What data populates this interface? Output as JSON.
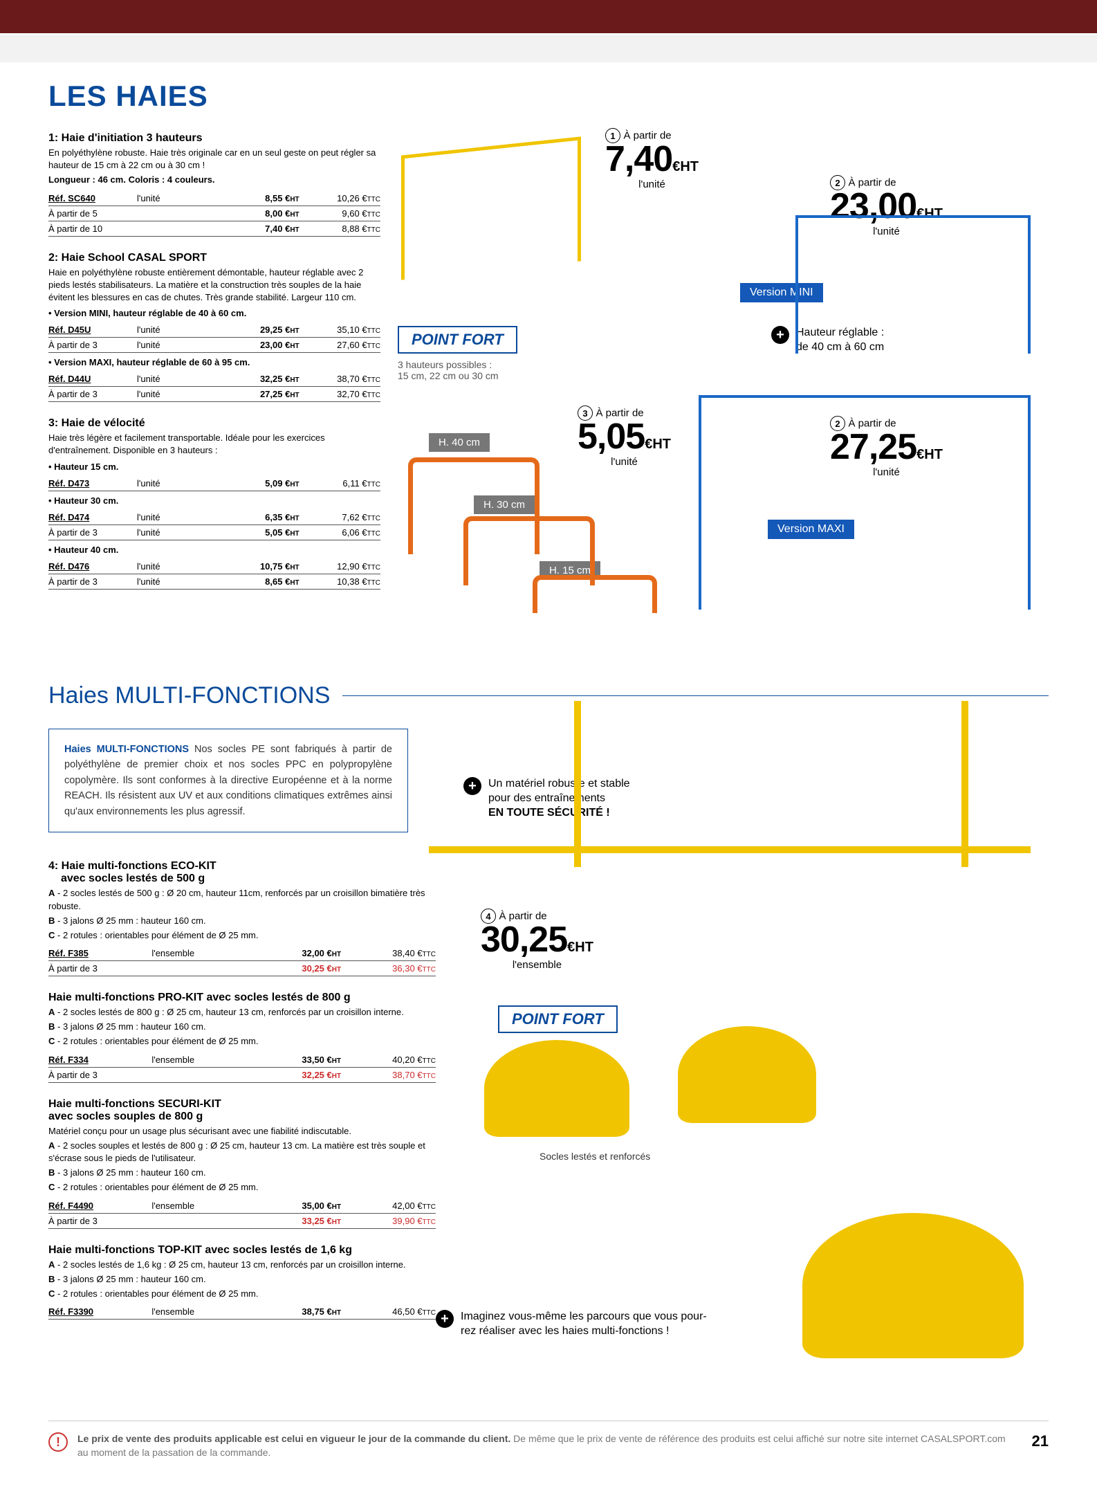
{
  "page_number": "21",
  "header_title": "LES HAIES",
  "products": {
    "p1": {
      "title": "1: Haie d'initiation 3 hauteurs",
      "desc": "En polyéthylène robuste. Haie très originale car en un seul geste on peut régler sa hauteur de 15 cm à 22 cm ou à 30 cm !",
      "note": "Longueur : 46 cm. Coloris : 4 couleurs.",
      "rows": [
        {
          "c1": "Réf. SC640",
          "c1b": true,
          "c2": "l'unité",
          "c3": "8,55 €",
          "c3s": "HT",
          "c4": "10,26 €",
          "c4s": "TTC"
        },
        {
          "c1": "À partir de 5",
          "c2": "",
          "c3": "8,00 €",
          "c3s": "HT",
          "c4": "9,60 €",
          "c4s": "TTC"
        },
        {
          "c1": "À partir de 10",
          "c2": "",
          "c3": "7,40 €",
          "c3s": "HT",
          "c4": "8,88 €",
          "c4s": "TTC"
        }
      ]
    },
    "p2": {
      "title": "2: Haie School CASAL SPORT",
      "desc": "Haie en polyéthylène robuste entièrement démontable, hauteur réglable avec 2 pieds lestés stabilisateurs.\nLa matière et la construction très souples de la haie évitent les blessures en cas de chutes. Très grande stabilité. Largeur 110 cm.",
      "sub1": "• Version MINI, hauteur réglable de 40 à 60 cm.",
      "rows1": [
        {
          "c1": "Réf. D45U",
          "c1b": true,
          "c2": "l'unité",
          "c3": "29,25 €",
          "c3s": "HT",
          "c4": "35,10 €",
          "c4s": "TTC"
        },
        {
          "c1": "À partir de 3",
          "c2": "l'unité",
          "c3": "23,00 €",
          "c3s": "HT",
          "c4": "27,60 €",
          "c4s": "TTC"
        }
      ],
      "sub2": "• Version MAXI, hauteur réglable de 60 à 95 cm.",
      "rows2": [
        {
          "c1": "Réf. D44U",
          "c1b": true,
          "c2": "l'unité",
          "c3": "32,25 €",
          "c3s": "HT",
          "c4": "38,70 €",
          "c4s": "TTC"
        },
        {
          "c1": "À partir de 3",
          "c2": "l'unité",
          "c3": "27,25 €",
          "c3s": "HT",
          "c4": "32,70 €",
          "c4s": "TTC"
        }
      ]
    },
    "p3": {
      "title": "3: Haie de vélocité",
      "desc": "Haie très légère et facilement transportable. Idéale pour les exercices d'entraînement. Disponible en 3 hauteurs :",
      "h1": "• Hauteur 15 cm.",
      "rows1": [
        {
          "c1": "Réf. D473",
          "c1b": true,
          "c2": "l'unité",
          "c3": "5,09 €",
          "c3s": "HT",
          "c4": "6,11 €",
          "c4s": "TTC"
        }
      ],
      "h2": "• Hauteur 30 cm.",
      "rows2": [
        {
          "c1": "Réf. D474",
          "c1b": true,
          "c2": "l'unité",
          "c3": "6,35 €",
          "c3s": "HT",
          "c4": "7,62 €",
          "c4s": "TTC"
        },
        {
          "c1": "À partir de 3",
          "c2": "l'unité",
          "c3": "5,05 €",
          "c3s": "HT",
          "c4": "6,06 €",
          "c4s": "TTC"
        }
      ],
      "h3": "• Hauteur 40 cm.",
      "rows3": [
        {
          "c1": "Réf. D476",
          "c1b": true,
          "c2": "l'unité",
          "c3": "10,75 €",
          "c3s": "HT",
          "c4": "12,90 €",
          "c4s": "TTC"
        },
        {
          "c1": "À partir de 3",
          "c2": "l'unité",
          "c3": "8,65 €",
          "c3s": "HT",
          "c4": "10,38 €",
          "c4s": "TTC"
        }
      ]
    }
  },
  "callouts": {
    "c1": {
      "num": "1",
      "from": "À partir de",
      "big": "7,40",
      "eht": "€HT",
      "unit": "l'unité"
    },
    "c2a": {
      "num": "2",
      "from": "À partir de",
      "big": "23,00",
      "eht": "€HT",
      "unit": "l'unité"
    },
    "c2b": {
      "num": "2",
      "from": "À partir de",
      "big": "27,25",
      "eht": "€HT",
      "unit": "l'unité"
    },
    "c3": {
      "num": "3",
      "from": "À partir de",
      "big": "5,05",
      "eht": "€HT",
      "unit": "l'unité"
    },
    "c4": {
      "num": "4",
      "from": "À partir de",
      "big": "30,25",
      "eht": "€HT",
      "unit": "l'ensemble"
    }
  },
  "point_fort1": {
    "label": "POINT FORT",
    "line1": "3 hauteurs possibles :",
    "line2": "15 cm, 22 cm ou 30 cm"
  },
  "point_fort2": {
    "label": "POINT FORT"
  },
  "feature1": {
    "l1": "Hauteur réglable :",
    "l2": "de 40 cm à 60 cm"
  },
  "tags": {
    "mini": "Version MINI",
    "maxi": "Version MAXI",
    "h40": "H. 40 cm",
    "h30": "H. 30 cm",
    "h15": "H. 15 cm"
  },
  "section2_title": "Haies MULTI-FONCTIONS",
  "info_box": {
    "lead": "Haies MULTI-FONCTIONS",
    "body": " Nos socles PE sont fabriqués à partir de polyéthylène de premier choix et nos socles PPC en polypropylène copolymère. Ils sont conformes à la directive Européenne et à la norme REACH. Ils résistent aux UV et aux conditions climatiques extrêmes ainsi qu'aux environnements les plus agressif."
  },
  "feature2": {
    "l1": "Un matériel robuste et stable",
    "l2": "pour des entraînements",
    "l3": "EN TOUTE SÉCURITÉ !"
  },
  "caption_socles": "Socles lestés et renforcés",
  "feature3": {
    "l1": "Imaginez vous-même les parcours que vous pour-",
    "l2": "rez réaliser avec les haies multi-fonctions !"
  },
  "multi": {
    "p4": {
      "title1": "4: Haie multi-fonctions ECO-KIT",
      "title2": "avec socles lestés de 500 g",
      "a": "A - 2 socles lestés de 500 g : Ø 20 cm, hauteur 11cm, renforcés par un croisillon bimatière très robuste.",
      "b": "B - 3 jalons Ø 25 mm : hauteur 160 cm.",
      "c": "C - 2 rotules : orientables pour élément de Ø 25 mm.",
      "rows": [
        {
          "c1": "Réf. F385",
          "c1b": true,
          "c2": "l'ensemble",
          "c3": "32,00 €",
          "c3s": "HT",
          "c4": "38,40 €",
          "c4s": "TTC"
        },
        {
          "c1": "À partir de 3",
          "c2": "",
          "c3": "30,25 €",
          "c3s": "HT",
          "c4": "36,30 €",
          "c4s": "TTC",
          "promo": true
        }
      ]
    },
    "p5": {
      "title": "Haie multi-fonctions PRO-KIT avec socles lestés de 800 g",
      "a": "A - 2 socles lestés de 800 g : Ø 25 cm, hauteur 13 cm, renforcés par un croisillon interne.",
      "b": "B - 3 jalons Ø 25 mm : hauteur 160 cm.",
      "c": "C - 2 rotules : orientables pour élément de Ø 25 mm.",
      "rows": [
        {
          "c1": "Réf. F334",
          "c1b": true,
          "c2": "l'ensemble",
          "c3": "33,50 €",
          "c3s": "HT",
          "c4": "40,20 €",
          "c4s": "TTC"
        },
        {
          "c1": "À partir de 3",
          "c2": "",
          "c3": "32,25 €",
          "c3s": "HT",
          "c4": "38,70 €",
          "c4s": "TTC",
          "promo": true
        }
      ]
    },
    "p6": {
      "title1": "Haie multi-fonctions SECURI-KIT",
      "title2": "avec socles souples de 800 g",
      "desc": "Matériel conçu pour un usage plus sécurisant avec une fiabilité indiscutable.",
      "a": "A - 2 socles souples et lestés de 800 g : Ø 25 cm, hauteur 13 cm. La matière est très souple et s'écrase sous le pieds de l'utilisateur.",
      "b": "B - 3 jalons Ø 25 mm : hauteur 160 cm.",
      "c": "C - 2 rotules :  orientables pour élément de Ø 25 mm.",
      "rows": [
        {
          "c1": "Réf. F4490",
          "c1b": true,
          "c2": "l'ensemble",
          "c3": "35,00 €",
          "c3s": "HT",
          "c4": "42,00 €",
          "c4s": "TTC"
        },
        {
          "c1": "À partir de 3",
          "c2": "",
          "c3": "33,25 €",
          "c3s": "HT",
          "c4": "39,90 €",
          "c4s": "TTC",
          "promo": true
        }
      ]
    },
    "p7": {
      "title": "Haie multi-fonctions TOP-KIT avec socles lestés de 1,6 kg",
      "a": "A - 2 socles lestés de 1,6 kg : Ø 25 cm, hauteur 13 cm, renforcés par un croisillon interne.",
      "b": "B - 3 jalons Ø 25 mm : hauteur 160 cm.",
      "c": "C - 2 rotules : orientables pour élément de Ø 25 mm.",
      "rows": [
        {
          "c1": "Réf. F3390",
          "c1b": true,
          "c2": "l'ensemble",
          "c3": "38,75 €",
          "c3s": "HT",
          "c4": "46,50 €",
          "c4s": "TTC"
        }
      ]
    }
  },
  "footer": {
    "bold": "Le prix de vente des produits applicable est celui en vigueur le jour de la commande du client.",
    "rest": " De même que le prix de vente de référence des produits est celui affiché sur notre site internet CASALSPORT.com au moment de la passation de la commande."
  }
}
